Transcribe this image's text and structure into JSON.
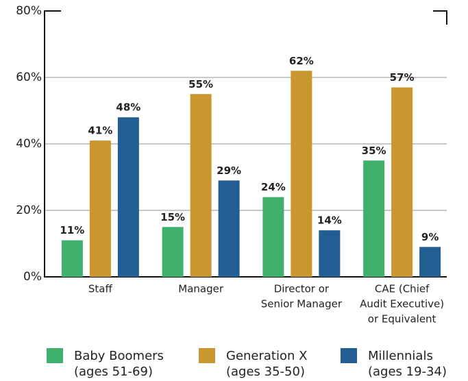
{
  "chart_data": {
    "type": "bar",
    "categories": [
      [
        "Staff"
      ],
      [
        "Manager"
      ],
      [
        "Director or",
        "Senior Manager"
      ],
      [
        "CAE (Chief",
        "Audit Executive)",
        "or Equivalent"
      ]
    ],
    "series": [
      {
        "name": [
          "Baby Boomers",
          "(ages 51-69)"
        ],
        "color": "#3fb16c",
        "values": [
          11,
          15,
          24,
          35
        ],
        "value_labels": [
          "11%",
          "15%",
          "24%",
          "35%"
        ]
      },
      {
        "name": [
          "Generation X",
          "(ages 35-50)"
        ],
        "color": "#c9962f",
        "values": [
          41,
          55,
          62,
          57
        ],
        "value_labels": [
          "41%",
          "55%",
          "62%",
          "57%"
        ]
      },
      {
        "name": [
          "Millennials",
          "(ages 19-34)"
        ],
        "color": "#235e93",
        "values": [
          48,
          29,
          14,
          9
        ],
        "value_labels": [
          "48%",
          "29%",
          "14%",
          "9%"
        ]
      }
    ],
    "ylim": [
      0,
      80
    ],
    "yticks": [
      {
        "value": 0,
        "label": "0%"
      },
      {
        "value": 20,
        "label": "20%"
      },
      {
        "value": 40,
        "label": "40%"
      },
      {
        "value": 60,
        "label": "60%"
      },
      {
        "value": 80,
        "label": "80%"
      }
    ],
    "grid": true
  }
}
